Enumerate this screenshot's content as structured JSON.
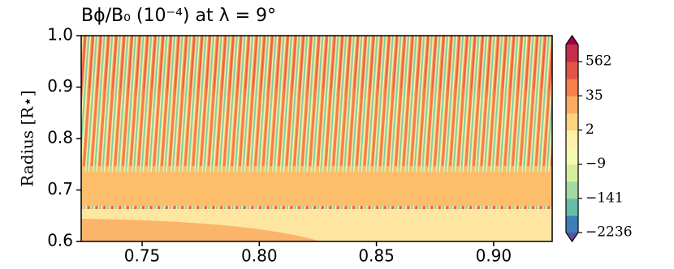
{
  "chart_data": {
    "type": "contourf",
    "title": "Bϕ/B₀ (10⁻⁴) at λ = 9°",
    "ylabel": "Radius [R⋆]",
    "xlim": [
      0.724,
      0.925
    ],
    "ylim": [
      0.6,
      1.0
    ],
    "xticks": [
      0.75,
      {
        "value": 0.8,
        "label": "0.80"
      },
      0.85,
      {
        "value": 0.9,
        "label": "0.90"
      }
    ],
    "yticks": [
      0.6,
      0.7,
      0.8,
      0.9,
      {
        "value": 1.0,
        "label": "1.0"
      }
    ],
    "colorbar": {
      "colors": [
        "#3f7fb9",
        "#68bda6",
        "#a3d9a3",
        "#d5ed9b",
        "#f5fab0",
        "#fef0a6",
        "#fed47f",
        "#fcac60",
        "#f67f4b",
        "#e15549",
        "#c52d4c"
      ],
      "extend_colors": [
        "#5e4fa2",
        "#9e0142"
      ],
      "ticks": [
        {
          "value": -2236,
          "label": "−2236"
        },
        {
          "value": -141,
          "label": "−141"
        },
        {
          "value": -9,
          "label": "−9"
        },
        2,
        35,
        562
      ]
    }
  }
}
